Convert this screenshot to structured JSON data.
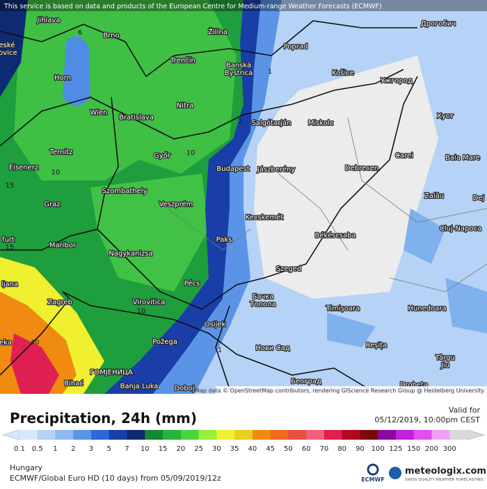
{
  "notice": "This service is based on data and products of the European Centre for Medium-range Weather Forecasts (ECMWF)",
  "attribution": "Map data © OpenStreetMap contributors, rendering GIScience Research Group @ Heidelberg University",
  "places": [
    "Jihlava",
    "Brno",
    "Žilina",
    "Poprad",
    "Дрогобич",
    "eské",
    "jovice",
    "Horn",
    "Banská",
    "Bystrica",
    "Trenčín",
    "Košice",
    "Ужгород",
    "Wien",
    "Bratislava",
    "Nitra",
    "Salgótarján",
    "Miskolc",
    "Хуст",
    "Ternitz",
    "Győr",
    "Carei",
    "Baia Mare",
    "Eisenerz",
    "Budapest",
    "Jászberény",
    "Debrecen",
    "Szombathely",
    "Graz",
    "Veszprém",
    "Zalău",
    "Dej",
    "Kecskemét",
    "Cluj-Napoca",
    "furt",
    "Maribor",
    "Nagykanizsa",
    "Paks",
    "Békéscsaba",
    "Szeged",
    "ljana",
    "Pécs",
    "Zagreb",
    "Virovitica",
    "Бачка",
    "Топола",
    "Timișoara",
    "Hunedoara",
    "Osijek",
    "Нови Сад",
    "Reșița",
    "Požega",
    "eka",
    "Târgu",
    "Jiu",
    "ГОМЈЕНИЦА",
    "Bihać",
    "Banja Luka",
    "Doboj",
    "Београд",
    "Drobeta"
  ],
  "contours": [
    "6",
    "1",
    "2",
    "10",
    "10",
    "15",
    "15",
    "10",
    "40",
    "1"
  ],
  "title": "Precipitation, 24h (mm)",
  "valid_label": "Valid for",
  "valid_time": "05/12/2019, 10:00pm CEST",
  "region": "Hungary",
  "model": "ECMWF/Global Euro HD (10 days) from 05/09/2019/12z",
  "ecmwf": "ECMWF",
  "brand": "meteologix.com",
  "tagline": "SWISS QUALITY WEATHER FORECASTING",
  "legend": {
    "values": [
      0.1,
      0.5,
      1,
      2,
      3,
      5,
      7,
      10,
      15,
      20,
      25,
      30,
      35,
      40,
      45,
      50,
      60,
      70,
      80,
      90,
      100,
      125,
      150,
      200,
      300
    ],
    "colors": [
      "#d8e8fb",
      "#b6d2f6",
      "#8fb9f0",
      "#5b94e6",
      "#2e68d8",
      "#1a3ea8",
      "#0d2a73",
      "#148a2e",
      "#25b53a",
      "#4bd43a",
      "#96f03c",
      "#f0f030",
      "#e8d020",
      "#f08a10",
      "#f06a20",
      "#e85040",
      "#f0607a",
      "#e02050",
      "#b00a20",
      "#7a0a0a",
      "#8a0aa0",
      "#c020e0",
      "#e050f0",
      "#f0a0f0",
      "#d8d8d8"
    ]
  }
}
